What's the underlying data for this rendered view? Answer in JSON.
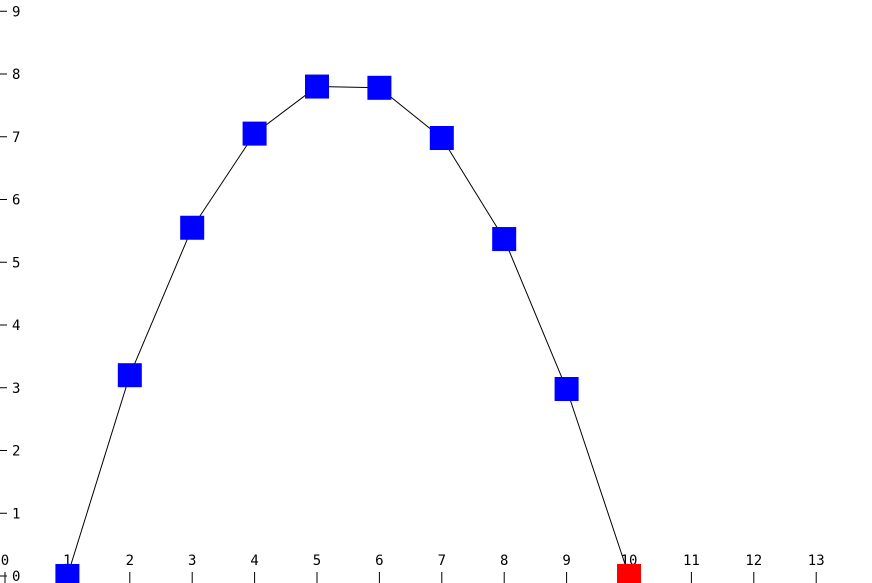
{
  "chart_data": {
    "type": "line",
    "title": "",
    "xlabel": "",
    "ylabel": "",
    "grid": false,
    "xlim": [
      0,
      13
    ],
    "ylim": [
      0,
      9
    ],
    "x_ticks": [
      "0",
      "1",
      "2",
      "3",
      "4",
      "5",
      "6",
      "7",
      "8",
      "9",
      "10",
      "11",
      "12",
      "13"
    ],
    "y_ticks": [
      "0",
      "1",
      "2",
      "3",
      "4",
      "5",
      "6",
      "7",
      "8",
      "9"
    ],
    "series": [
      {
        "points": [
          {
            "x": 1,
            "y": 0.0
          },
          {
            "x": 2,
            "y": 3.2
          },
          {
            "x": 3,
            "y": 5.55
          },
          {
            "x": 4,
            "y": 7.05
          },
          {
            "x": 5,
            "y": 7.8
          },
          {
            "x": 6,
            "y": 7.78
          },
          {
            "x": 7,
            "y": 6.98
          },
          {
            "x": 8,
            "y": 5.37
          },
          {
            "x": 9,
            "y": 2.98
          },
          {
            "x": 10,
            "y": 0.0
          }
        ],
        "marker": "square",
        "marker_color": "#0000ff",
        "last_marker_color": "#ff0000",
        "line_color": "#000000"
      }
    ]
  }
}
